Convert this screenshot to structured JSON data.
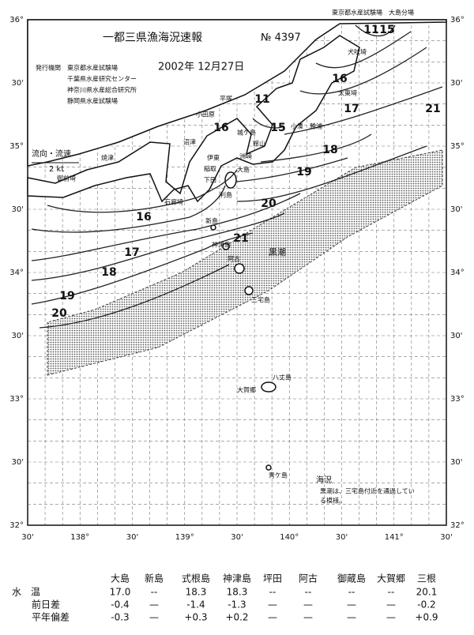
{
  "header": {
    "branch": "東京都水産試験場　大島分場",
    "title": "一都三県漁海況速報",
    "number": "№ 4397",
    "issuer_label": "発行機関",
    "issuers": [
      "東京都水産試験場",
      "千葉県水産研究センター",
      "神奈川県水産総合研究所",
      "静岡県水産試験場"
    ],
    "date": "2002年 12月27日"
  },
  "map": {
    "lat_labels": [
      "36°",
      "30'",
      "35°",
      "30'",
      "34°",
      "30'",
      "33°",
      "30'",
      "32°"
    ],
    "lon_labels": [
      "30'",
      "138°",
      "30'",
      "139°",
      "30'",
      "140°",
      "30'",
      "141°",
      "30'"
    ],
    "legend": {
      "label": "流向・流速",
      "scale": "2 kt"
    },
    "places": [
      "犬吠埼",
      "平塚",
      "小田原",
      "城ケ島",
      "館山",
      "洲崎",
      "太東埼",
      "勝浦",
      "小湊",
      "沼津",
      "伊東",
      "焼津",
      "御前埼",
      "石廊埼",
      "稲取",
      "下田",
      "大島",
      "利島",
      "新島",
      "神津島",
      "阿古",
      "三宅島",
      "八丈島",
      "大賀郷",
      "青ケ島"
    ],
    "isotherm_labels": [
      "11",
      "15",
      "16",
      "17",
      "21",
      "11",
      "16",
      "15",
      "18",
      "19",
      "20",
      "21",
      "16",
      "17",
      "18",
      "19",
      "20"
    ],
    "kuroshio": "黒潮",
    "note": {
      "title": "海況",
      "text": [
        "黒潮は、三宅島付近を通過してい",
        "る模様。"
      ]
    }
  },
  "table": {
    "columns": [
      "大島",
      "新島",
      "式根島",
      "神津島",
      "坪田",
      "阿古",
      "御蔵島",
      "大賀郷",
      "三根"
    ],
    "rows": [
      {
        "label": "水　温",
        "values": [
          "17.0",
          "--",
          "18.3",
          "18.3",
          "--",
          "--",
          "--",
          "--",
          "20.1"
        ]
      },
      {
        "label": "前日差",
        "values": [
          "-0.4",
          "—",
          "-1.4",
          "-1.3",
          "—",
          "—",
          "—",
          "—",
          "-0.2"
        ]
      },
      {
        "label": "平年偏差",
        "values": [
          "-0.3",
          "—",
          "+0.3",
          "+0.2",
          "—",
          "—",
          "—",
          "—",
          "+0.9"
        ]
      }
    ]
  }
}
